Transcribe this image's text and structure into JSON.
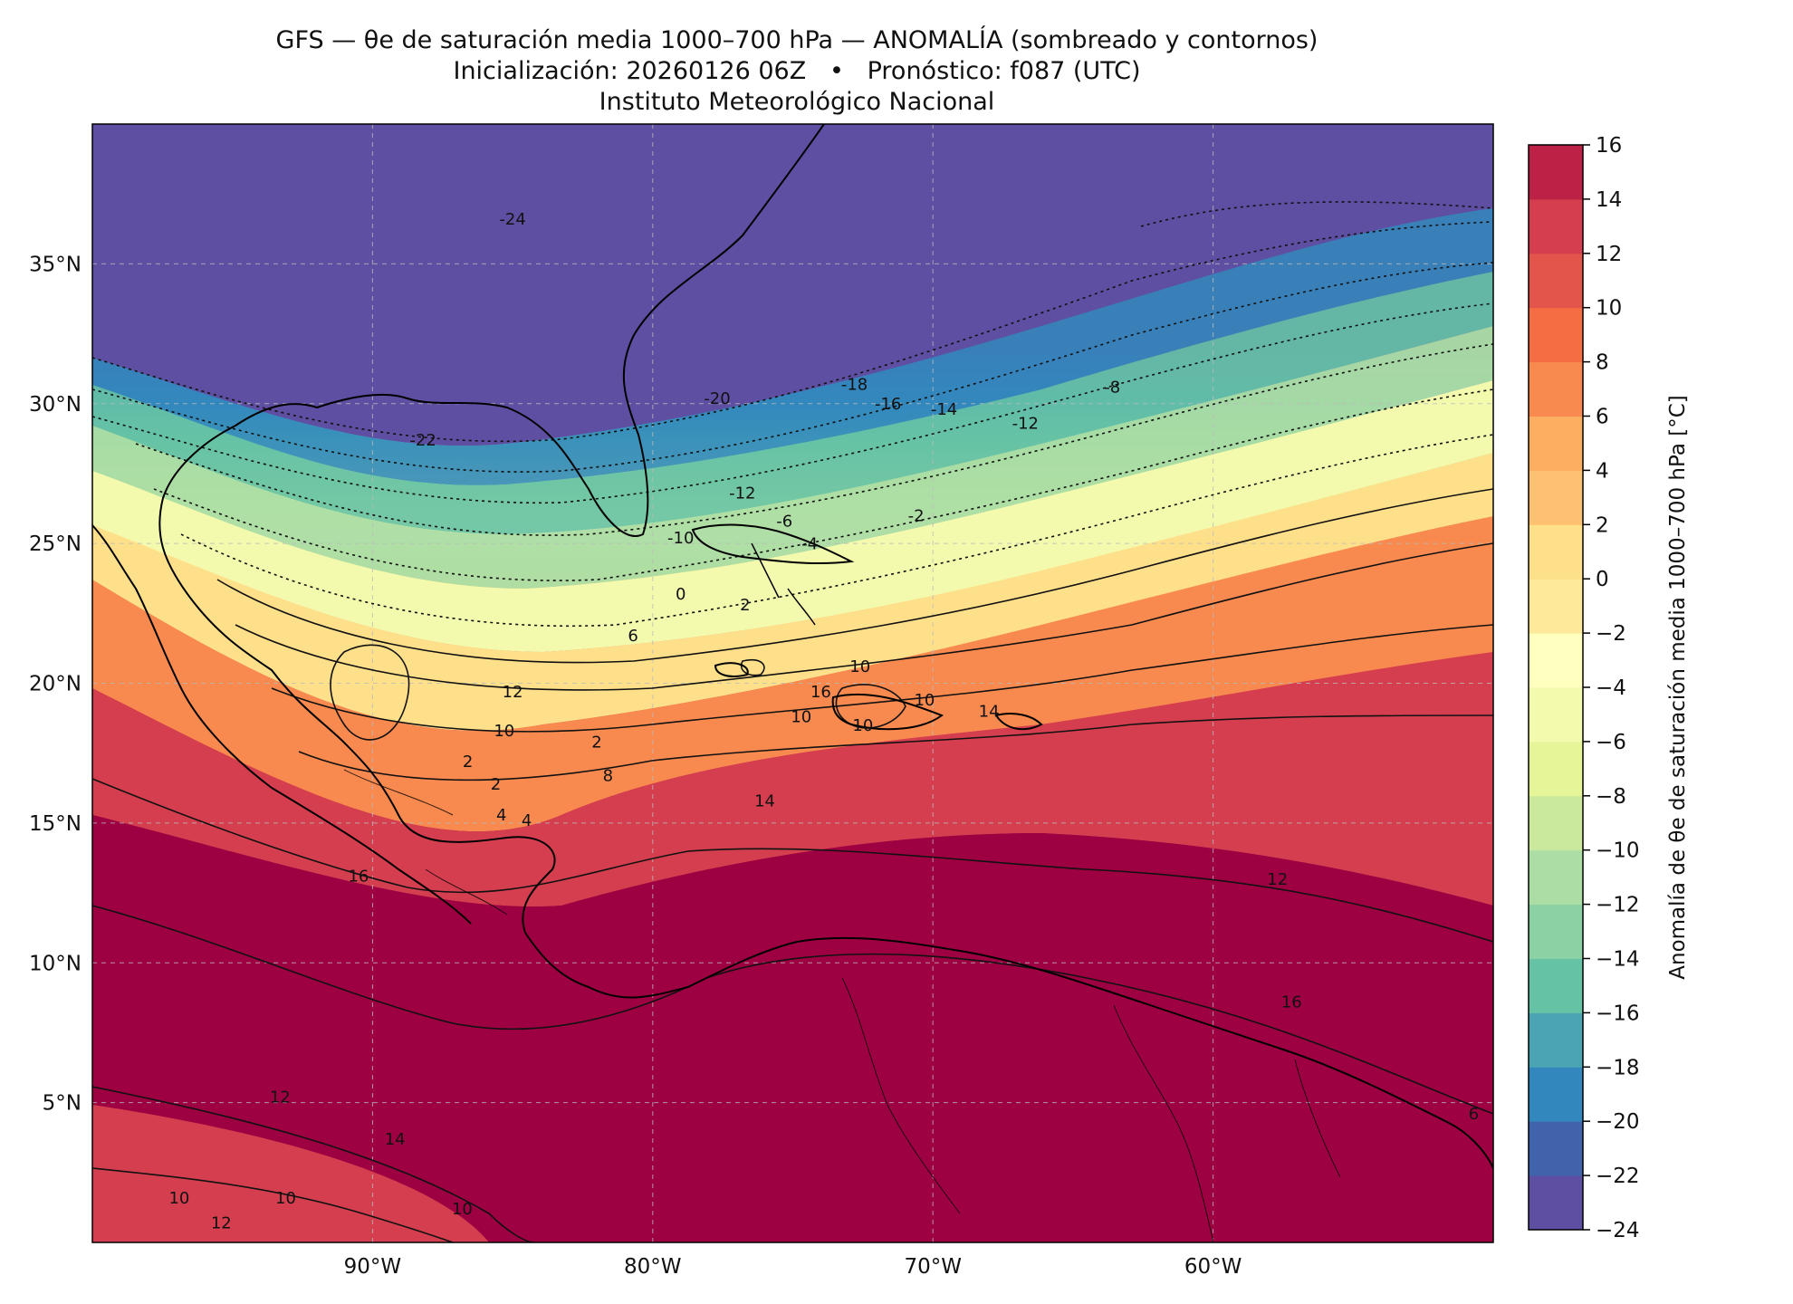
{
  "title": {
    "line1": "GFS — θe de saturación media 1000–700 hPa — ANOMALÍA (sombreado y contornos)",
    "line2": "Inicialización: 20260126 06Z   •   Pronóstico: f087 (UTC)",
    "line3": "Instituto Meteorológico Nacional"
  },
  "map": {
    "lon_ticks": [
      {
        "lon": -90,
        "label": "90°W"
      },
      {
        "lon": -80,
        "label": "80°W"
      },
      {
        "lon": -70,
        "label": "70°W"
      },
      {
        "lon": -60,
        "label": "60°W"
      }
    ],
    "lat_ticks": [
      {
        "lat": 35,
        "label": "35°N"
      },
      {
        "lat": 30,
        "label": "30°N"
      },
      {
        "lat": 25,
        "label": "25°N"
      },
      {
        "lat": 20,
        "label": "20°N"
      },
      {
        "lat": 15,
        "label": "15°N"
      },
      {
        "lat": 10,
        "label": "10°N"
      },
      {
        "lat": 5,
        "label": "5°N"
      }
    ],
    "extent": {
      "lon_min": -100,
      "lon_max": -50,
      "lat_min": 0,
      "lat_max": 40
    },
    "contour_labels": [
      {
        "text": "-24",
        "lon": -85.0,
        "lat": 36.4
      },
      {
        "text": "-22",
        "lon": -88.2,
        "lat": 28.5
      },
      {
        "text": "-20",
        "lon": -77.7,
        "lat": 30.0
      },
      {
        "text": "-18",
        "lon": -72.8,
        "lat": 30.5
      },
      {
        "text": "-16",
        "lon": -71.6,
        "lat": 29.8
      },
      {
        "text": "-14",
        "lon": -69.6,
        "lat": 29.6
      },
      {
        "text": "-12",
        "lon": -76.8,
        "lat": 26.6
      },
      {
        "text": "-12",
        "lon": -66.7,
        "lat": 29.1
      },
      {
        "text": "-10",
        "lon": -79.0,
        "lat": 25.0
      },
      {
        "text": "-8",
        "lon": -63.6,
        "lat": 30.4
      },
      {
        "text": "-6",
        "lon": -75.3,
        "lat": 25.6
      },
      {
        "text": "-4",
        "lon": -74.4,
        "lat": 24.8
      },
      {
        "text": "-2",
        "lon": -70.6,
        "lat": 25.8
      },
      {
        "text": "0",
        "lon": -79.0,
        "lat": 23.0
      },
      {
        "text": "2",
        "lon": -76.7,
        "lat": 22.6
      },
      {
        "text": "6",
        "lon": -80.7,
        "lat": 21.5
      },
      {
        "text": "10",
        "lon": -72.6,
        "lat": 20.4
      },
      {
        "text": "10",
        "lon": -74.7,
        "lat": 18.6
      },
      {
        "text": "10",
        "lon": -70.3,
        "lat": 19.2
      },
      {
        "text": "10",
        "lon": -72.5,
        "lat": 18.3
      },
      {
        "text": "14",
        "lon": -68.0,
        "lat": 18.8
      },
      {
        "text": "16",
        "lon": -74.0,
        "lat": 19.5
      },
      {
        "text": "14",
        "lon": -76.0,
        "lat": 15.6
      },
      {
        "text": "8",
        "lon": -81.6,
        "lat": 16.5
      },
      {
        "text": "12",
        "lon": -85.0,
        "lat": 19.5
      },
      {
        "text": "10",
        "lon": -85.3,
        "lat": 18.1
      },
      {
        "text": "2",
        "lon": -82.0,
        "lat": 17.7
      },
      {
        "text": "2",
        "lon": -86.6,
        "lat": 17.0
      },
      {
        "text": "2",
        "lon": -85.6,
        "lat": 16.2
      },
      {
        "text": "4",
        "lon": -85.4,
        "lat": 15.1
      },
      {
        "text": "4",
        "lon": -84.5,
        "lat": 14.9
      },
      {
        "text": "12",
        "lon": -57.7,
        "lat": 12.8
      },
      {
        "text": "16",
        "lon": -90.5,
        "lat": 12.9
      },
      {
        "text": "16",
        "lon": -57.2,
        "lat": 8.4
      },
      {
        "text": "12",
        "lon": -93.3,
        "lat": 5.0
      },
      {
        "text": "14",
        "lon": -89.2,
        "lat": 3.5
      },
      {
        "text": "10",
        "lon": -96.9,
        "lat": 1.4
      },
      {
        "text": "10",
        "lon": -93.1,
        "lat": 1.4
      },
      {
        "text": "10",
        "lon": -86.8,
        "lat": 1.0
      },
      {
        "text": "12",
        "lon": -95.4,
        "lat": 0.5
      },
      {
        "text": "6",
        "lon": -50.7,
        "lat": 4.4
      }
    ]
  },
  "colorbar": {
    "label": "Anomalía de θe de saturación media 1000–700 hPa [°C]",
    "levels": [
      -24,
      -22,
      -20,
      -18,
      -16,
      -14,
      -12,
      -10,
      -8,
      -6,
      -4,
      -2,
      0,
      2,
      4,
      6,
      8,
      10,
      12,
      14,
      16
    ],
    "tick_labels": [
      "−24",
      "−22",
      "−20",
      "−18",
      "−16",
      "−14",
      "−12",
      "−10",
      "−8",
      "−6",
      "−4",
      "−2",
      "0",
      "2",
      "4",
      "6",
      "8",
      "10",
      "12",
      "14",
      "16"
    ],
    "colors": [
      "#5e4fa2",
      "#4063ac",
      "#3288bd",
      "#4ba4b1",
      "#66c2a5",
      "#8bd1a4",
      "#abdda4",
      "#cbe99d",
      "#e6f598",
      "#f3faad",
      "#ffffbf",
      "#fee99a",
      "#fee08b",
      "#fdc171",
      "#fdae61",
      "#f88a50",
      "#f46d43",
      "#e3544a",
      "#d53e4f",
      "#be2146",
      "#9e0142"
    ]
  }
}
